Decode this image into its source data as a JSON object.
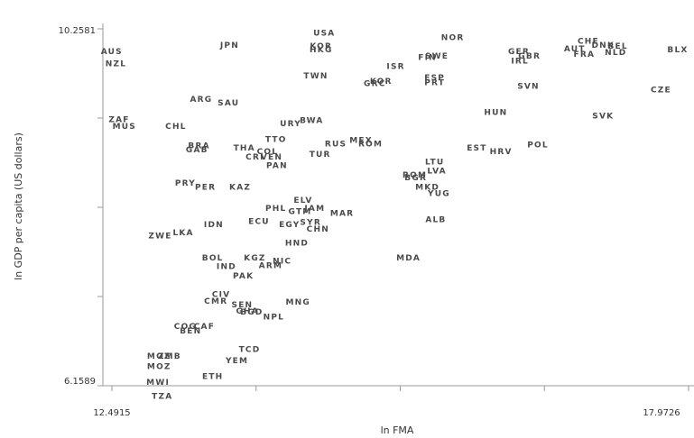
{
  "chart_data": {
    "type": "scatter",
    "xlabel": "ln FMA",
    "ylabel": "ln GDP per capita (US dollars)",
    "xlim": [
      12.4915,
      17.9726
    ],
    "ylim": [
      6.1589,
      10.2581
    ],
    "x_tick_labels": [
      "12.4915",
      "17.9726"
    ],
    "y_tick_labels": [
      "10.2581",
      "6.1589"
    ],
    "points": [
      {
        "label": "USA",
        "x": 14.51,
        "y": 10.21
      },
      {
        "label": "JPN",
        "x": 13.61,
        "y": 10.07
      },
      {
        "label": "AUS",
        "x": 12.49,
        "y": 10.0
      },
      {
        "label": "NZL",
        "x": 12.53,
        "y": 9.86
      },
      {
        "label": "KOR",
        "x": 14.48,
        "y": 10.06
      },
      {
        "label": "HKG",
        "x": 14.48,
        "y": 10.02
      },
      {
        "label": "TWN",
        "x": 14.43,
        "y": 9.72
      },
      {
        "label": "NOR",
        "x": 15.73,
        "y": 10.16
      },
      {
        "label": "FIN",
        "x": 15.49,
        "y": 9.93
      },
      {
        "label": "SWE",
        "x": 15.58,
        "y": 9.95
      },
      {
        "label": "ISR",
        "x": 15.19,
        "y": 9.83
      },
      {
        "label": "ESP",
        "x": 15.56,
        "y": 9.7
      },
      {
        "label": "PRT",
        "x": 15.56,
        "y": 9.64
      },
      {
        "label": "KOR",
        "x": 15.05,
        "y": 9.66
      },
      {
        "label": "GRC",
        "x": 14.99,
        "y": 9.63
      },
      {
        "label": "GER",
        "x": 16.36,
        "y": 10.0
      },
      {
        "label": "GBR",
        "x": 16.46,
        "y": 9.95
      },
      {
        "label": "IRL",
        "x": 16.37,
        "y": 9.89
      },
      {
        "label": "CHE",
        "x": 17.02,
        "y": 10.12
      },
      {
        "label": "AUT",
        "x": 16.89,
        "y": 10.03
      },
      {
        "label": "DNK",
        "x": 17.16,
        "y": 10.07
      },
      {
        "label": "BEL",
        "x": 17.3,
        "y": 10.06
      },
      {
        "label": "FRA",
        "x": 16.98,
        "y": 9.97
      },
      {
        "label": "NLD",
        "x": 17.28,
        "y": 9.99
      },
      {
        "label": "BLX",
        "x": 17.87,
        "y": 10.02
      },
      {
        "label": "SVN",
        "x": 16.45,
        "y": 9.6
      },
      {
        "label": "CZE",
        "x": 17.71,
        "y": 9.56
      },
      {
        "label": "SVK",
        "x": 17.16,
        "y": 9.26
      },
      {
        "label": "HUN",
        "x": 16.14,
        "y": 9.3
      },
      {
        "label": "POL",
        "x": 16.54,
        "y": 8.93
      },
      {
        "label": "EST",
        "x": 15.96,
        "y": 8.89
      },
      {
        "label": "HRV",
        "x": 16.19,
        "y": 8.85
      },
      {
        "label": "LTU",
        "x": 15.56,
        "y": 8.73
      },
      {
        "label": "LVA",
        "x": 15.58,
        "y": 8.63
      },
      {
        "label": "ROM",
        "x": 15.37,
        "y": 8.58
      },
      {
        "label": "BGR",
        "x": 15.38,
        "y": 8.55
      },
      {
        "label": "MKD",
        "x": 15.49,
        "y": 8.44
      },
      {
        "label": "YUG",
        "x": 15.6,
        "y": 8.37
      },
      {
        "label": "ALB",
        "x": 15.57,
        "y": 8.07
      },
      {
        "label": "MDA",
        "x": 15.31,
        "y": 7.63
      },
      {
        "label": "MEX",
        "x": 14.86,
        "y": 8.98
      },
      {
        "label": "ROM",
        "x": 14.95,
        "y": 8.94
      },
      {
        "label": "RUS",
        "x": 14.62,
        "y": 8.94
      },
      {
        "label": "TUR",
        "x": 14.47,
        "y": 8.82
      },
      {
        "label": "URY",
        "x": 14.19,
        "y": 9.17
      },
      {
        "label": "BWA",
        "x": 14.39,
        "y": 9.21
      },
      {
        "label": "ARG",
        "x": 13.34,
        "y": 9.45
      },
      {
        "label": "SAU",
        "x": 13.6,
        "y": 9.41
      },
      {
        "label": "ZAF",
        "x": 12.56,
        "y": 9.22
      },
      {
        "label": "MUS",
        "x": 12.61,
        "y": 9.14
      },
      {
        "label": "CHL",
        "x": 13.1,
        "y": 9.14
      },
      {
        "label": "BRA",
        "x": 13.32,
        "y": 8.92
      },
      {
        "label": "GAB",
        "x": 13.3,
        "y": 8.87
      },
      {
        "label": "THA",
        "x": 13.75,
        "y": 8.89
      },
      {
        "label": "TTO",
        "x": 14.05,
        "y": 8.99
      },
      {
        "label": "COL",
        "x": 13.97,
        "y": 8.85
      },
      {
        "label": "CRI",
        "x": 13.85,
        "y": 8.79
      },
      {
        "label": "VEN",
        "x": 14.01,
        "y": 8.79
      },
      {
        "label": "PAN",
        "x": 14.06,
        "y": 8.69
      },
      {
        "label": "PRY",
        "x": 13.19,
        "y": 8.49
      },
      {
        "label": "PER",
        "x": 13.38,
        "y": 8.44
      },
      {
        "label": "KAZ",
        "x": 13.71,
        "y": 8.44
      },
      {
        "label": "ELV",
        "x": 14.31,
        "y": 8.29
      },
      {
        "label": "GTM",
        "x": 14.28,
        "y": 8.16
      },
      {
        "label": "JAM",
        "x": 14.42,
        "y": 8.2
      },
      {
        "label": "MAR",
        "x": 14.68,
        "y": 8.14
      },
      {
        "label": "PHL",
        "x": 14.05,
        "y": 8.2
      },
      {
        "label": "ECU",
        "x": 13.89,
        "y": 8.05
      },
      {
        "label": "EGY",
        "x": 14.18,
        "y": 8.01
      },
      {
        "label": "SYR",
        "x": 14.38,
        "y": 8.04
      },
      {
        "label": "CHN",
        "x": 14.45,
        "y": 7.96
      },
      {
        "label": "IDN",
        "x": 13.46,
        "y": 8.01
      },
      {
        "label": "LKA",
        "x": 13.17,
        "y": 7.92
      },
      {
        "label": "ZWE",
        "x": 12.95,
        "y": 7.88
      },
      {
        "label": "HND",
        "x": 14.25,
        "y": 7.8
      },
      {
        "label": "BOL",
        "x": 13.45,
        "y": 7.63
      },
      {
        "label": "KGZ",
        "x": 13.85,
        "y": 7.63
      },
      {
        "label": "IND",
        "x": 13.58,
        "y": 7.53
      },
      {
        "label": "NIC",
        "x": 14.11,
        "y": 7.59
      },
      {
        "label": "ARM",
        "x": 14.0,
        "y": 7.54
      },
      {
        "label": "PAK",
        "x": 13.74,
        "y": 7.42
      },
      {
        "label": "MNG",
        "x": 14.26,
        "y": 7.12
      },
      {
        "label": "CIV",
        "x": 13.53,
        "y": 7.21
      },
      {
        "label": "CMR",
        "x": 13.48,
        "y": 7.13
      },
      {
        "label": "SEN",
        "x": 13.73,
        "y": 7.09
      },
      {
        "label": "GHA",
        "x": 13.78,
        "y": 7.02
      },
      {
        "label": "BGD",
        "x": 13.82,
        "y": 7.01
      },
      {
        "label": "NPL",
        "x": 14.03,
        "y": 6.95
      },
      {
        "label": "COG",
        "x": 13.19,
        "y": 6.84
      },
      {
        "label": "BEN",
        "x": 13.24,
        "y": 6.79
      },
      {
        "label": "CAF",
        "x": 13.37,
        "y": 6.84
      },
      {
        "label": "TCD",
        "x": 13.8,
        "y": 6.58
      },
      {
        "label": "YEM",
        "x": 13.68,
        "y": 6.45
      },
      {
        "label": "MOZ",
        "x": 12.94,
        "y": 6.5
      },
      {
        "label": "ZMB",
        "x": 13.04,
        "y": 6.5
      },
      {
        "label": "MOZ",
        "x": 12.94,
        "y": 6.38
      },
      {
        "label": "ETH",
        "x": 13.45,
        "y": 6.27
      },
      {
        "label": "MWI",
        "x": 12.93,
        "y": 6.2
      },
      {
        "label": "TZA",
        "x": 12.97,
        "y": 6.04
      }
    ]
  }
}
